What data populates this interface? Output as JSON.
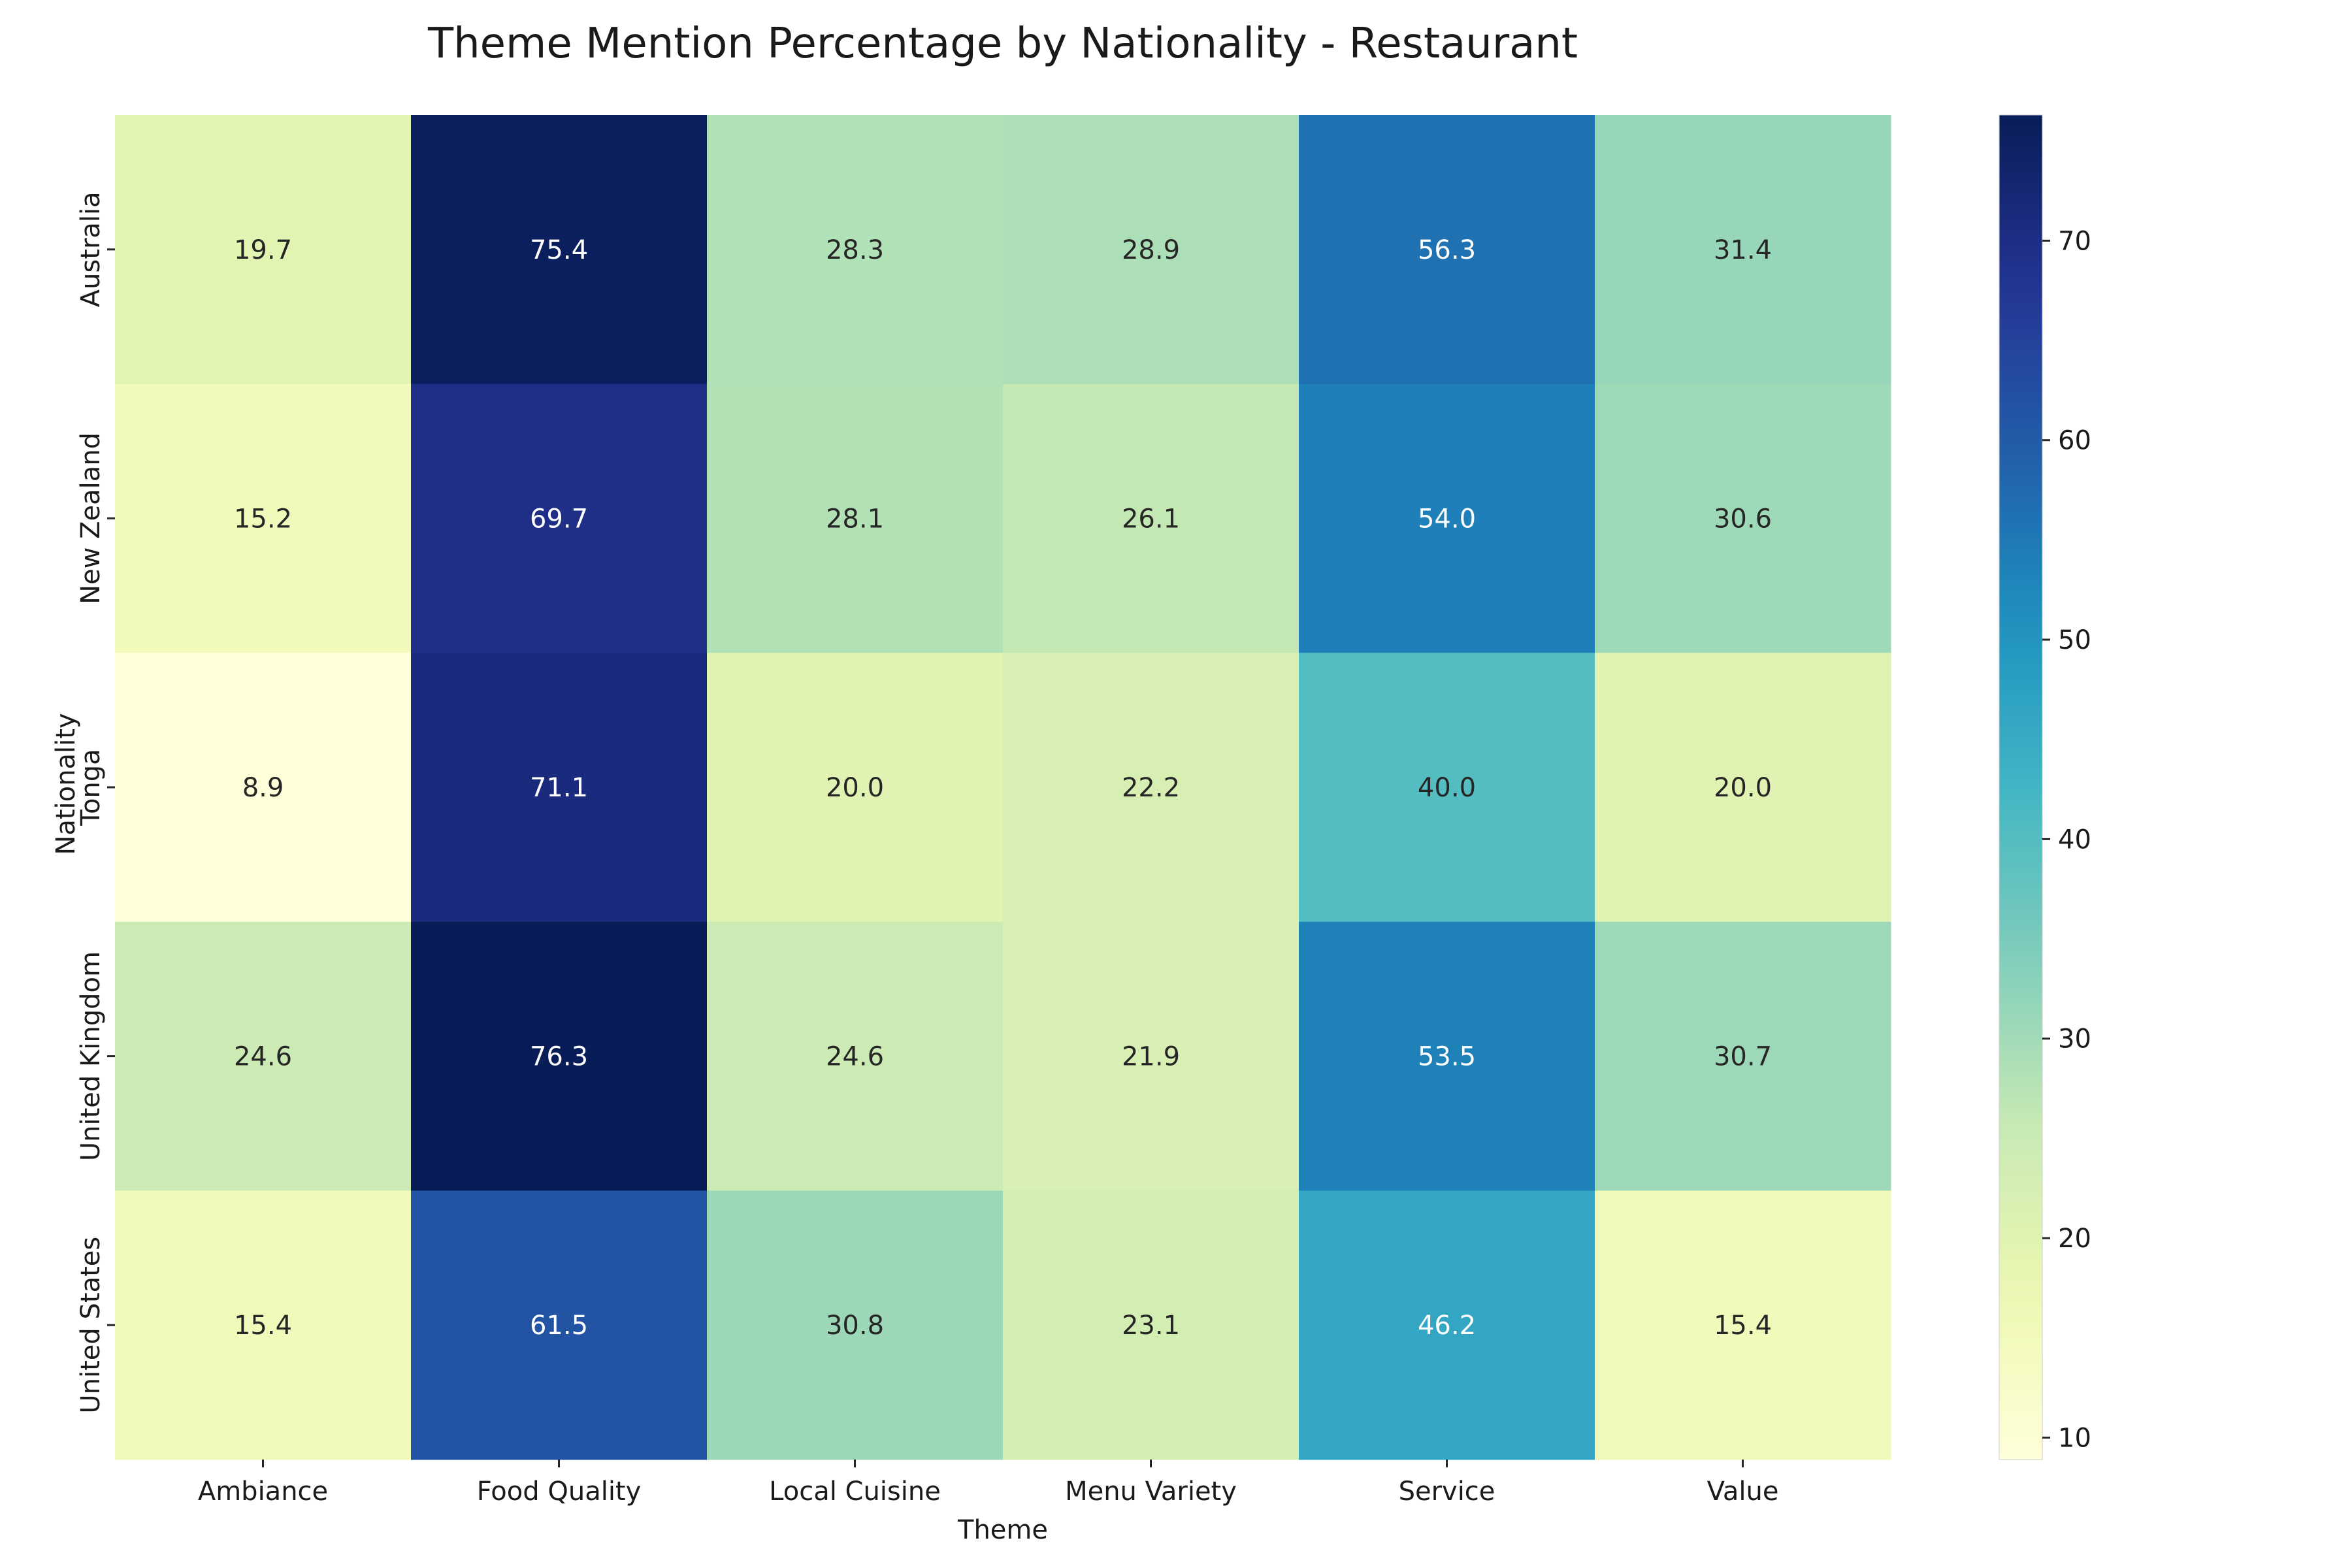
{
  "chart_data": {
    "type": "heatmap",
    "title": "Theme Mention Percentage by Nationality - Restaurant",
    "xlabel": "Theme",
    "ylabel": "Nationality",
    "columns": [
      "Ambiance",
      "Food Quality",
      "Local Cuisine",
      "Menu Variety",
      "Service",
      "Value"
    ],
    "rows": [
      "Australia",
      "New Zealand",
      "Tonga",
      "United Kingdom",
      "United States"
    ],
    "values": [
      [
        19.7,
        75.4,
        28.3,
        28.9,
        56.3,
        31.4
      ],
      [
        15.2,
        69.7,
        28.1,
        26.1,
        54.0,
        30.6
      ],
      [
        8.9,
        71.1,
        20.0,
        22.2,
        40.0,
        20.0
      ],
      [
        24.6,
        76.3,
        24.6,
        21.9,
        53.5,
        30.7
      ],
      [
        15.4,
        61.5,
        30.8,
        23.1,
        46.2,
        15.4
      ]
    ],
    "value_format": "0.0",
    "colormap": "YlGnBu",
    "color_range": [
      8.9,
      76.3
    ],
    "colorbar_ticks": [
      10,
      20,
      30,
      40,
      50,
      60,
      70
    ],
    "grid": false
  }
}
